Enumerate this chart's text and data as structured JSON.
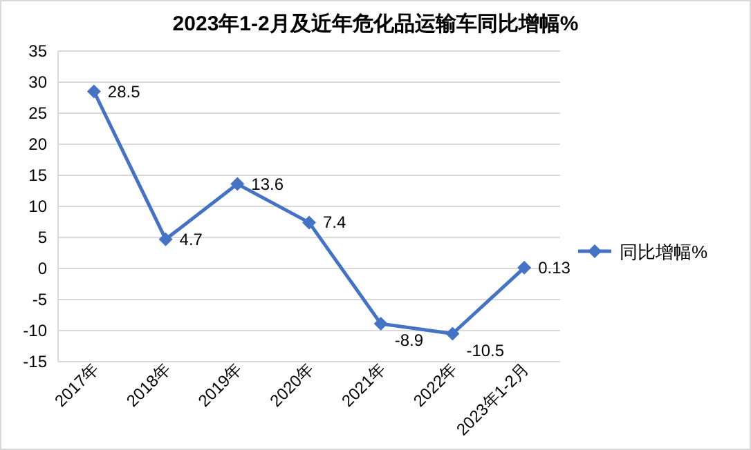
{
  "chart_data": {
    "type": "line",
    "title": "2023年1-2月及近年危化品运输车同比增幅%",
    "categories": [
      "2017年",
      "2018年",
      "2019年",
      "2020年",
      "2021年",
      "2022年",
      "2023年1-2月"
    ],
    "series": [
      {
        "name": "同比增幅%",
        "color": "#4472c4",
        "values": [
          28.5,
          4.7,
          13.6,
          7.4,
          -8.9,
          -10.5,
          0.13
        ]
      }
    ],
    "ylim": [
      -15,
      35
    ],
    "yticks": [
      -15,
      -10,
      -5,
      0,
      5,
      10,
      15,
      20,
      25,
      30,
      35
    ],
    "grid": "y",
    "legend": "right",
    "marker": "diamond",
    "line_style": "solid",
    "data_labels": true
  }
}
